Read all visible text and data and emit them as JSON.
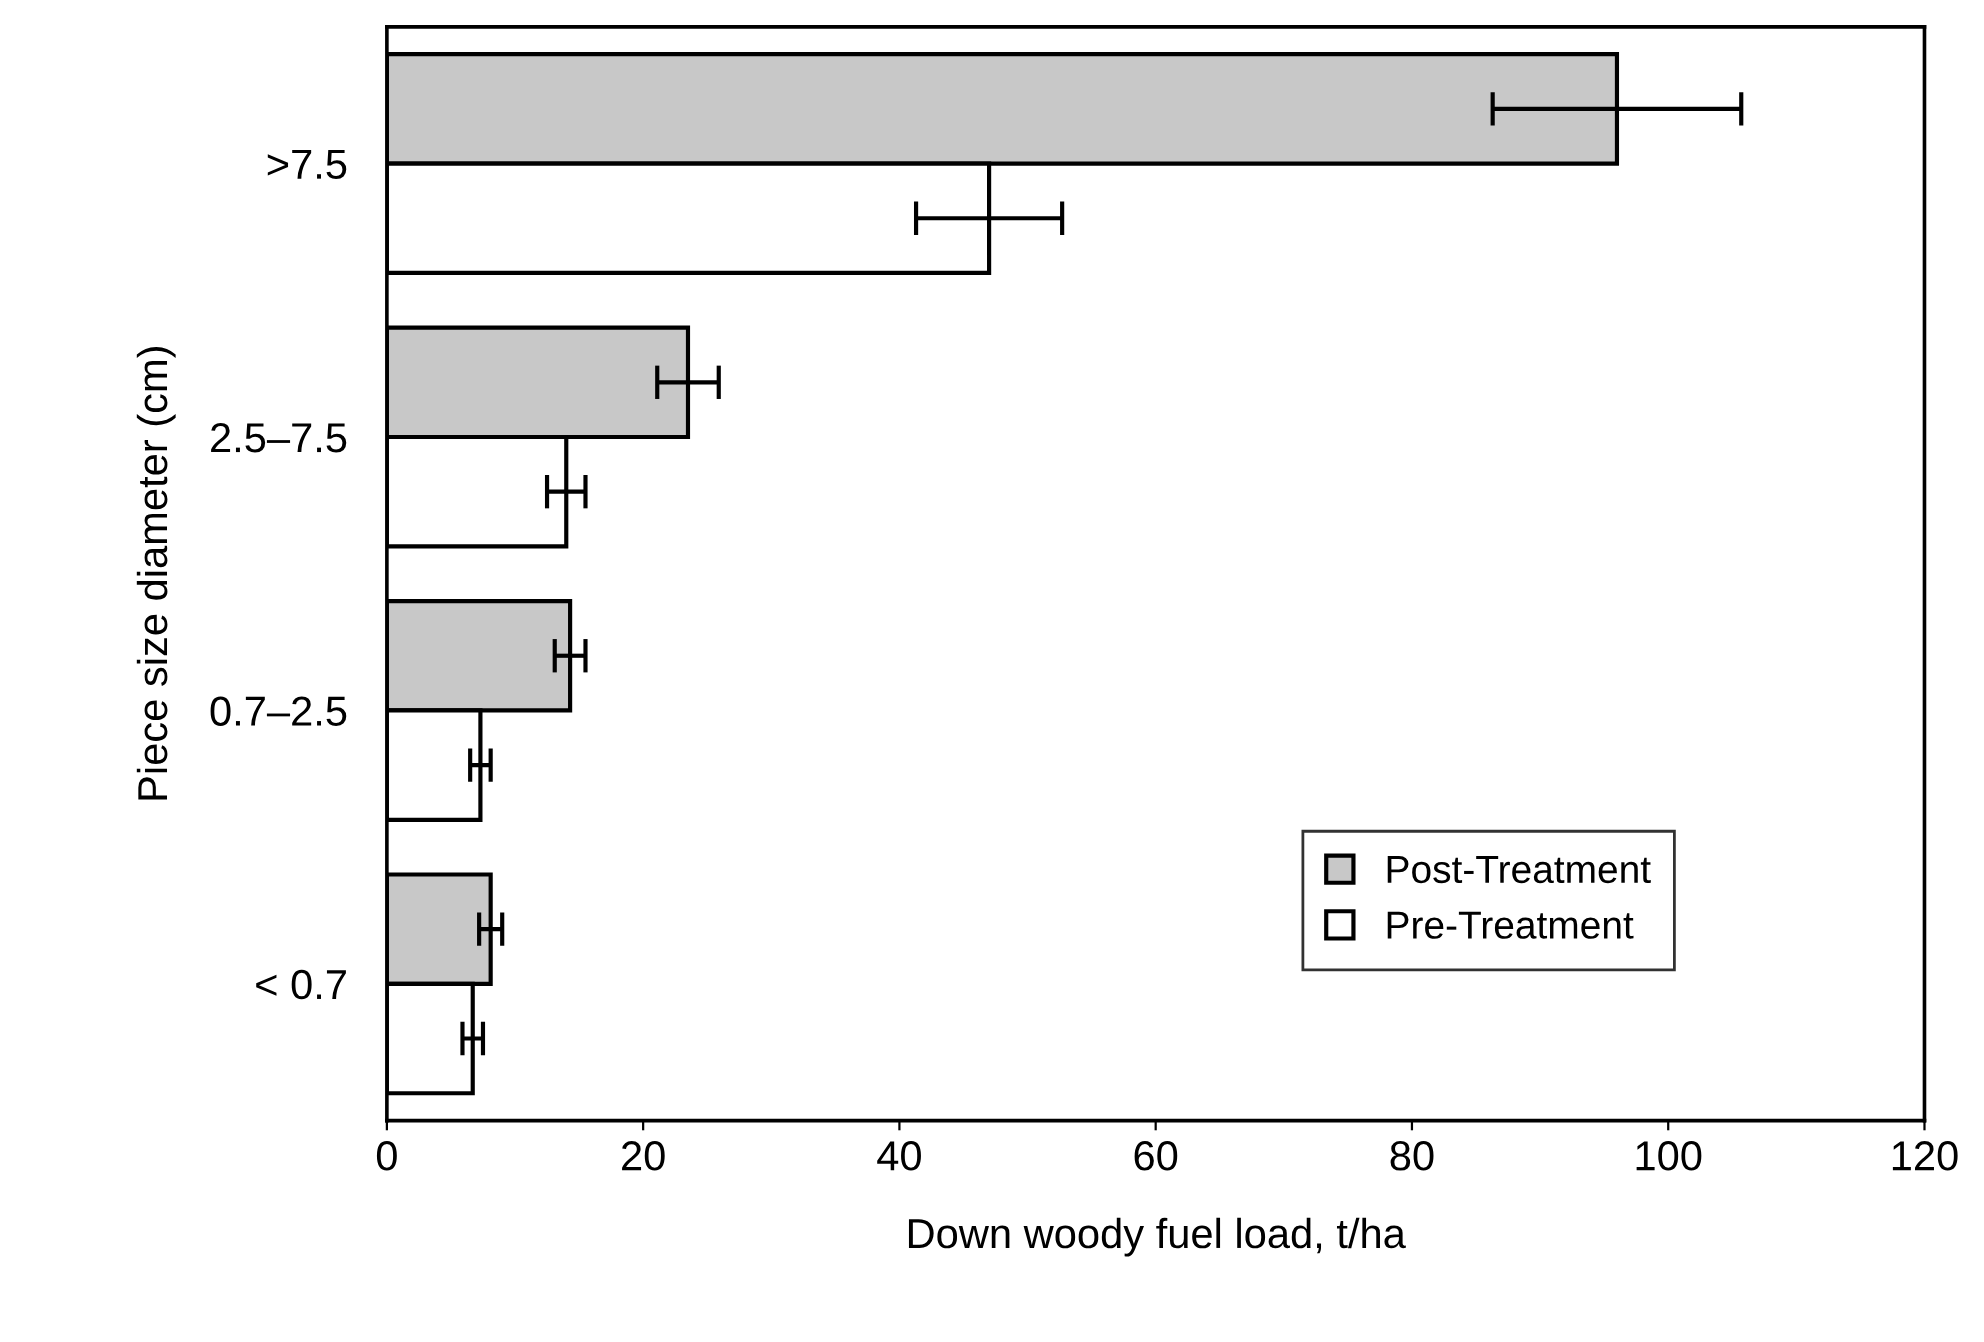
{
  "chart_data": {
    "type": "bar",
    "orientation": "horizontal",
    "xlabel": "Down woody fuel load, t/ha",
    "ylabel": "Piece size diameter (cm)",
    "categories": [
      ">7.5",
      "2.5–7.5",
      "0.7–2.5",
      "< 0.7"
    ],
    "series": [
      {
        "name": "Post-Treatment",
        "color": "#c8c8c8",
        "values": [
          96,
          23.5,
          14.3,
          8.1
        ],
        "errors": [
          9.7,
          2.4,
          1.2,
          0.9
        ]
      },
      {
        "name": "Pre-Treatment",
        "color": "#ffffff",
        "values": [
          47,
          14,
          7.3,
          6.7
        ],
        "errors": [
          5.7,
          1.5,
          0.8,
          0.8
        ]
      }
    ],
    "xlim": [
      0,
      120
    ],
    "xticks": [
      0,
      20,
      40,
      60,
      80,
      100,
      120
    ],
    "legend": "bottom right",
    "grid": false
  }
}
